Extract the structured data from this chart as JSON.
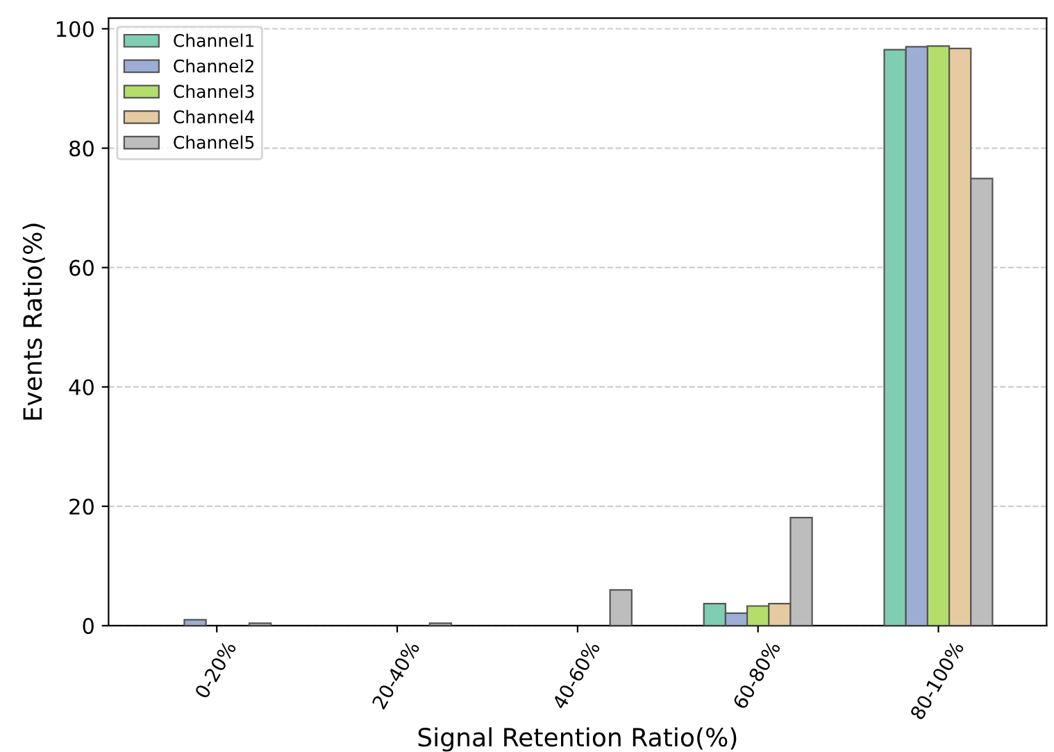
{
  "chart_data": {
    "type": "bar",
    "xlabel": "Signal Retention Ratio(%)",
    "ylabel": "Events Ratio(%)",
    "categories": [
      "0-20%",
      "20-40%",
      "40-60%",
      "60-80%",
      "80-100%"
    ],
    "series": [
      {
        "name": "Channel1",
        "color": "#7fcdb3",
        "values": [
          null,
          null,
          null,
          3.7,
          96.5
        ]
      },
      {
        "name": "Channel2",
        "color": "#9daed4",
        "values": [
          1.0,
          null,
          null,
          2.1,
          97.0
        ]
      },
      {
        "name": "Channel3",
        "color": "#b3de69",
        "values": [
          null,
          null,
          null,
          3.3,
          97.1
        ]
      },
      {
        "name": "Channel4",
        "color": "#e6cba0",
        "values": [
          null,
          null,
          null,
          3.7,
          96.7
        ]
      },
      {
        "name": "Channel5",
        "color": "#bdbdbd",
        "values": [
          0.4,
          0.4,
          6.0,
          18.1,
          74.9
        ]
      }
    ],
    "ylim": [
      0,
      101.8
    ],
    "yticks": [
      0,
      20,
      40,
      60,
      80,
      100
    ],
    "grid": "y",
    "legend": "top left"
  }
}
